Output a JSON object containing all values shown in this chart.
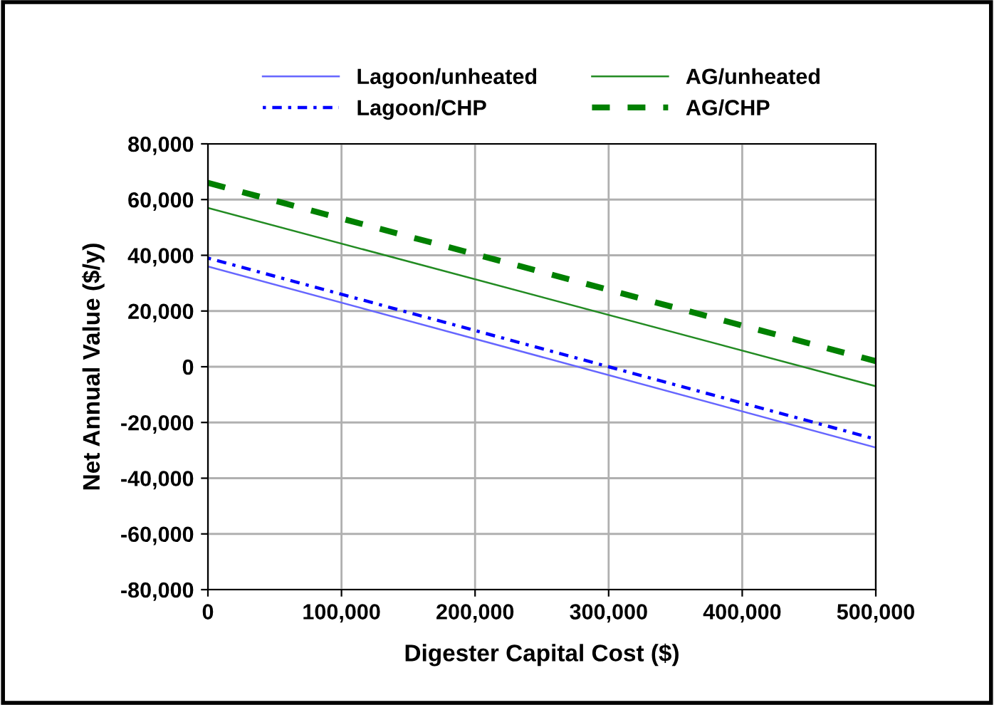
{
  "chart_data": {
    "type": "line",
    "xlabel": "Digester Capital Cost ($)",
    "ylabel": "Net Annual Value ($/y)",
    "xlim": [
      0,
      500000
    ],
    "xticks": [
      {
        "value": 0,
        "label": "0"
      },
      {
        "value": 100000,
        "label": "100,000"
      },
      {
        "value": 200000,
        "label": "200,000"
      },
      {
        "value": 300000,
        "label": "300,000"
      },
      {
        "value": 400000,
        "label": "400,000"
      },
      {
        "value": 500000,
        "label": "500,000"
      }
    ],
    "ylim": [
      -80000,
      80000
    ],
    "yticks": [
      {
        "value": -80000,
        "label": "-80,000"
      },
      {
        "value": -60000,
        "label": "-60,000"
      },
      {
        "value": -40000,
        "label": "-40,000"
      },
      {
        "value": -20000,
        "label": "-20,000"
      },
      {
        "value": 0,
        "label": "0"
      },
      {
        "value": 20000,
        "label": "20,000"
      },
      {
        "value": 40000,
        "label": "40,000"
      },
      {
        "value": 60000,
        "label": "60,000"
      },
      {
        "value": 80000,
        "label": "80,000"
      }
    ],
    "x": [
      0,
      500000
    ],
    "grid": true,
    "legend": "top",
    "marker": "none",
    "series": [
      {
        "name": "Lagoon/unheated",
        "color": "#6666ff",
        "values": [
          36000,
          -29000
        ],
        "line_style": "solid"
      },
      {
        "name": "Lagoon/CHP",
        "color": "#0000ff",
        "values": [
          39000,
          -26000
        ],
        "line_style": "dotted"
      },
      {
        "name": "AG/unheated",
        "color": "#228b22",
        "values": [
          57000,
          -7000
        ],
        "line_style": "solid"
      },
      {
        "name": "AG/CHP",
        "color": "#008000",
        "values": [
          66000,
          2000
        ],
        "line_style": "dashed"
      }
    ]
  }
}
